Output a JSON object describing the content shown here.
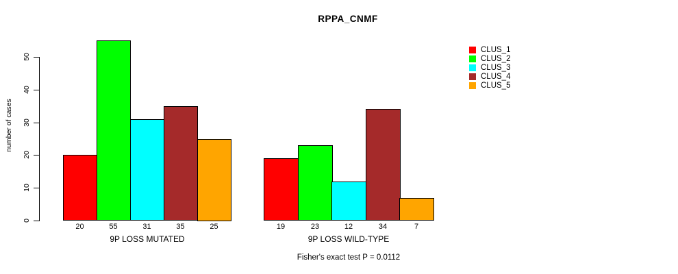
{
  "chart_data": {
    "type": "bar",
    "title": "RPPA_CNMF",
    "ylabel": "number of cases",
    "yticks": [
      0,
      10,
      20,
      30,
      40,
      50
    ],
    "ylim": [
      0,
      55
    ],
    "grid": false,
    "legend_position": "right-top",
    "clusters": [
      {
        "name": "CLUS_1",
        "color": "#FF0000"
      },
      {
        "name": "CLUS_2",
        "color": "#00FF00"
      },
      {
        "name": "CLUS_3",
        "color": "#00FFFF"
      },
      {
        "name": "CLUS_4",
        "color": "#A52A2A"
      },
      {
        "name": "CLUS_5",
        "color": "#FFA500"
      }
    ],
    "groups": [
      {
        "label": "9P LOSS MUTATED",
        "values": [
          20,
          55,
          31,
          35,
          25
        ]
      },
      {
        "label": "9P LOSS WILD-TYPE",
        "values": [
          19,
          23,
          12,
          34,
          7
        ]
      }
    ],
    "footnote": "Fisher's exact test P = 0.0112"
  }
}
